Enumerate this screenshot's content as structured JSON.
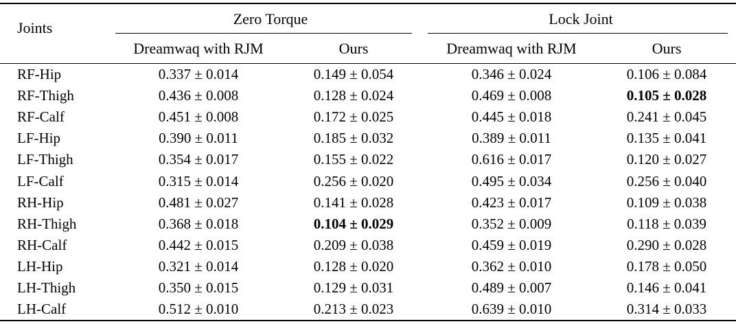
{
  "table": {
    "corner_header": "Joints",
    "groups": [
      {
        "label": "Zero Torque",
        "columns": [
          "Dreamwaq with RJM",
          "Ours"
        ]
      },
      {
        "label": "Lock Joint",
        "columns": [
          "Dreamwaq with RJM",
          "Ours"
        ]
      }
    ],
    "rows": [
      {
        "joint": "RF-Hip",
        "zt_rjm": "0.337 ± 0.014",
        "zt_ours": "0.149 ± 0.054",
        "lj_rjm": "0.346 ± 0.024",
        "lj_ours": "0.106 ± 0.084"
      },
      {
        "joint": "RF-Thigh",
        "zt_rjm": "0.436 ± 0.008",
        "zt_ours": "0.128 ± 0.024",
        "lj_rjm": "0.469 ± 0.008",
        "lj_ours": "0.105 ± 0.028"
      },
      {
        "joint": "RF-Calf",
        "zt_rjm": "0.451 ± 0.008",
        "zt_ours": "0.172 ± 0.025",
        "lj_rjm": "0.445 ± 0.018",
        "lj_ours": "0.241 ± 0.045"
      },
      {
        "joint": "LF-Hip",
        "zt_rjm": "0.390 ± 0.011",
        "zt_ours": "0.185 ± 0.032",
        "lj_rjm": "0.389 ± 0.011",
        "lj_ours": "0.135 ± 0.041"
      },
      {
        "joint": "LF-Thigh",
        "zt_rjm": "0.354 ± 0.017",
        "zt_ours": "0.155 ± 0.022",
        "lj_rjm": "0.616 ± 0.017",
        "lj_ours": "0.120 ± 0.027"
      },
      {
        "joint": "LF-Calf",
        "zt_rjm": "0.315 ± 0.014",
        "zt_ours": "0.256 ± 0.020",
        "lj_rjm": "0.495 ± 0.034",
        "lj_ours": "0.256 ± 0.040"
      },
      {
        "joint": "RH-Hip",
        "zt_rjm": "0.481 ± 0.027",
        "zt_ours": "0.141 ± 0.028",
        "lj_rjm": "0.423 ± 0.017",
        "lj_ours": "0.109 ± 0.038"
      },
      {
        "joint": "RH-Thigh",
        "zt_rjm": "0.368 ± 0.018",
        "zt_ours": "0.104 ± 0.029",
        "lj_rjm": "0.352 ± 0.009",
        "lj_ours": "0.118 ± 0.039"
      },
      {
        "joint": "RH-Calf",
        "zt_rjm": "0.442 ± 0.015",
        "zt_ours": "0.209 ± 0.038",
        "lj_rjm": "0.459 ± 0.019",
        "lj_ours": "0.290 ± 0.028"
      },
      {
        "joint": "LH-Hip",
        "zt_rjm": "0.321 ± 0.014",
        "zt_ours": "0.128 ± 0.020",
        "lj_rjm": "0.362 ± 0.010",
        "lj_ours": "0.178 ± 0.050"
      },
      {
        "joint": "LH-Thigh",
        "zt_rjm": "0.350 ± 0.015",
        "zt_ours": "0.129 ± 0.031",
        "lj_rjm": "0.489 ± 0.007",
        "lj_ours": "0.146 ± 0.041"
      },
      {
        "joint": "LH-Calf",
        "zt_rjm": "0.512 ± 0.010",
        "zt_ours": "0.213 ± 0.023",
        "lj_rjm": "0.639 ± 0.010",
        "lj_ours": "0.314 ± 0.033"
      }
    ],
    "bold_cells": [
      "table.rows.7.zt_ours",
      "table.rows.1.lj_ours"
    ]
  }
}
